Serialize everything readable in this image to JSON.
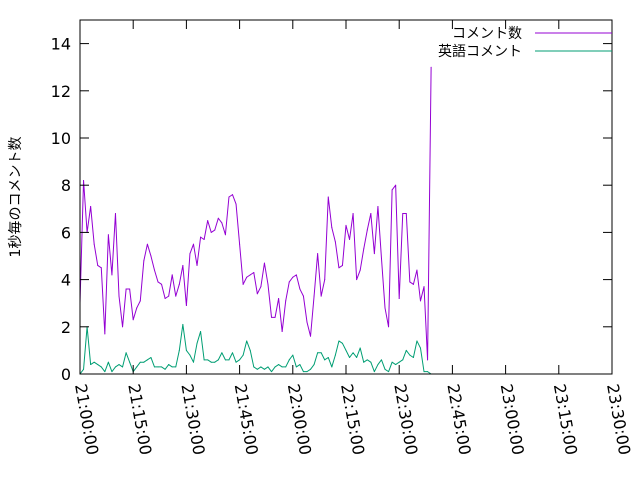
{
  "chart_data": {
    "type": "line",
    "title": "",
    "xlabel": "",
    "ylabel": "1秒毎のコメント数",
    "ylim": [
      0,
      15
    ],
    "yticks": [
      0,
      2,
      4,
      6,
      8,
      10,
      12,
      14
    ],
    "ytick_labels": [
      "0",
      "2",
      "4",
      "6",
      "8",
      "10",
      "12",
      "14"
    ],
    "xlim": [
      "21:00:00",
      "23:30:00"
    ],
    "xtick_labels": [
      "21:00:00",
      "21:15:00",
      "21:30:00",
      "21:45:00",
      "22:00:00",
      "22:15:00",
      "22:30:00",
      "22:45:00",
      "23:00:00",
      "23:15:00",
      "23:30:00"
    ],
    "grid": false,
    "legend_position": "top-right",
    "series": [
      {
        "name": "コメント数",
        "color": "#9400d3",
        "points": [
          [
            "21:00:00",
            3.0
          ],
          [
            "21:01:00",
            8.2
          ],
          [
            "21:02:00",
            6.0
          ],
          [
            "21:03:00",
            7.1
          ],
          [
            "21:04:00",
            5.5
          ],
          [
            "21:05:00",
            4.6
          ],
          [
            "21:06:00",
            4.5
          ],
          [
            "21:07:00",
            1.7
          ],
          [
            "21:08:00",
            5.9
          ],
          [
            "21:09:00",
            4.2
          ],
          [
            "21:10:00",
            6.8
          ],
          [
            "21:11:00",
            3.3
          ],
          [
            "21:12:00",
            2.0
          ],
          [
            "21:13:00",
            3.6
          ],
          [
            "21:14:00",
            3.6
          ],
          [
            "21:15:00",
            2.3
          ],
          [
            "21:16:00",
            2.8
          ],
          [
            "21:17:00",
            3.1
          ],
          [
            "21:18:00",
            4.8
          ],
          [
            "21:19:00",
            5.5
          ],
          [
            "21:20:00",
            5.0
          ],
          [
            "21:21:00",
            4.4
          ],
          [
            "21:22:00",
            3.9
          ],
          [
            "21:23:00",
            3.8
          ],
          [
            "21:24:00",
            3.2
          ],
          [
            "21:25:00",
            3.3
          ],
          [
            "21:26:00",
            4.2
          ],
          [
            "21:27:00",
            3.3
          ],
          [
            "21:28:00",
            3.8
          ],
          [
            "21:29:00",
            4.6
          ],
          [
            "21:30:00",
            2.9
          ],
          [
            "21:31:00",
            5.1
          ],
          [
            "21:32:00",
            5.5
          ],
          [
            "21:33:00",
            4.6
          ],
          [
            "21:34:00",
            5.8
          ],
          [
            "21:35:00",
            5.7
          ],
          [
            "21:36:00",
            6.5
          ],
          [
            "21:37:00",
            6.0
          ],
          [
            "21:38:00",
            6.1
          ],
          [
            "21:39:00",
            6.6
          ],
          [
            "21:40:00",
            6.4
          ],
          [
            "21:41:00",
            5.9
          ],
          [
            "21:42:00",
            7.5
          ],
          [
            "21:43:00",
            7.6
          ],
          [
            "21:44:00",
            7.2
          ],
          [
            "21:45:00",
            5.5
          ],
          [
            "21:46:00",
            3.8
          ],
          [
            "21:47:00",
            4.1
          ],
          [
            "21:48:00",
            4.2
          ],
          [
            "21:49:00",
            4.3
          ],
          [
            "21:50:00",
            3.4
          ],
          [
            "21:51:00",
            3.7
          ],
          [
            "21:52:00",
            4.7
          ],
          [
            "21:53:00",
            3.8
          ],
          [
            "21:54:00",
            2.4
          ],
          [
            "21:55:00",
            2.4
          ],
          [
            "21:56:00",
            3.2
          ],
          [
            "21:57:00",
            1.8
          ],
          [
            "21:58:00",
            3.1
          ],
          [
            "21:59:00",
            3.9
          ],
          [
            "22:00:00",
            4.1
          ],
          [
            "22:01:00",
            4.2
          ],
          [
            "22:02:00",
            3.6
          ],
          [
            "22:03:00",
            3.3
          ],
          [
            "22:04:00",
            2.2
          ],
          [
            "22:05:00",
            1.6
          ],
          [
            "22:06:00",
            3.3
          ],
          [
            "22:07:00",
            5.1
          ],
          [
            "22:08:00",
            3.3
          ],
          [
            "22:09:00",
            4.0
          ],
          [
            "22:10:00",
            7.5
          ],
          [
            "22:11:00",
            6.2
          ],
          [
            "22:12:00",
            5.6
          ],
          [
            "22:13:00",
            4.5
          ],
          [
            "22:14:00",
            4.6
          ],
          [
            "22:15:00",
            6.3
          ],
          [
            "22:16:00",
            5.7
          ],
          [
            "22:17:00",
            6.8
          ],
          [
            "22:18:00",
            4.0
          ],
          [
            "22:19:00",
            4.4
          ],
          [
            "22:20:00",
            5.3
          ],
          [
            "22:21:00",
            6.1
          ],
          [
            "22:22:00",
            6.8
          ],
          [
            "22:23:00",
            5.1
          ],
          [
            "22:24:00",
            7.1
          ],
          [
            "22:25:00",
            4.9
          ],
          [
            "22:26:00",
            2.8
          ],
          [
            "22:27:00",
            2.0
          ],
          [
            "22:28:00",
            7.8
          ],
          [
            "22:29:00",
            8.0
          ],
          [
            "22:30:00",
            3.2
          ],
          [
            "22:31:00",
            6.8
          ],
          [
            "22:32:00",
            6.8
          ],
          [
            "22:33:00",
            3.9
          ],
          [
            "22:34:00",
            3.8
          ],
          [
            "22:35:00",
            4.4
          ],
          [
            "22:36:00",
            3.1
          ],
          [
            "22:37:00",
            3.7
          ],
          [
            "22:38:00",
            0.6
          ],
          [
            "22:39:00",
            13.0
          ]
        ]
      },
      {
        "name": "英語コメント",
        "color": "#009e73",
        "points": [
          [
            "21:00:00",
            0.0
          ],
          [
            "21:01:00",
            0.2
          ],
          [
            "21:02:00",
            2.0
          ],
          [
            "21:03:00",
            0.4
          ],
          [
            "21:04:00",
            0.5
          ],
          [
            "21:05:00",
            0.4
          ],
          [
            "21:06:00",
            0.3
          ],
          [
            "21:07:00",
            0.1
          ],
          [
            "21:08:00",
            0.5
          ],
          [
            "21:09:00",
            0.1
          ],
          [
            "21:10:00",
            0.3
          ],
          [
            "21:11:00",
            0.4
          ],
          [
            "21:12:00",
            0.3
          ],
          [
            "21:13:00",
            0.9
          ],
          [
            "21:14:00",
            0.5
          ],
          [
            "21:15:00",
            0.1
          ],
          [
            "21:16:00",
            0.3
          ],
          [
            "21:17:00",
            0.5
          ],
          [
            "21:18:00",
            0.5
          ],
          [
            "21:19:00",
            0.6
          ],
          [
            "21:20:00",
            0.7
          ],
          [
            "21:21:00",
            0.3
          ],
          [
            "21:22:00",
            0.3
          ],
          [
            "21:23:00",
            0.3
          ],
          [
            "21:24:00",
            0.2
          ],
          [
            "21:25:00",
            0.4
          ],
          [
            "21:26:00",
            0.3
          ],
          [
            "21:27:00",
            0.3
          ],
          [
            "21:28:00",
            1.0
          ],
          [
            "21:29:00",
            2.1
          ],
          [
            "21:30:00",
            1.0
          ],
          [
            "21:31:00",
            0.8
          ],
          [
            "21:32:00",
            0.5
          ],
          [
            "21:33:00",
            1.3
          ],
          [
            "21:34:00",
            1.8
          ],
          [
            "21:35:00",
            0.6
          ],
          [
            "21:36:00",
            0.6
          ],
          [
            "21:37:00",
            0.5
          ],
          [
            "21:38:00",
            0.5
          ],
          [
            "21:39:00",
            0.6
          ],
          [
            "21:40:00",
            0.9
          ],
          [
            "21:41:00",
            0.6
          ],
          [
            "21:42:00",
            0.6
          ],
          [
            "21:43:00",
            0.9
          ],
          [
            "21:44:00",
            0.5
          ],
          [
            "21:45:00",
            0.6
          ],
          [
            "21:46:00",
            0.8
          ],
          [
            "21:47:00",
            1.4
          ],
          [
            "21:48:00",
            1.0
          ],
          [
            "21:49:00",
            0.3
          ],
          [
            "21:50:00",
            0.2
          ],
          [
            "21:51:00",
            0.3
          ],
          [
            "21:52:00",
            0.2
          ],
          [
            "21:53:00",
            0.3
          ],
          [
            "21:54:00",
            0.1
          ],
          [
            "21:55:00",
            0.3
          ],
          [
            "21:56:00",
            0.4
          ],
          [
            "21:57:00",
            0.3
          ],
          [
            "21:58:00",
            0.3
          ],
          [
            "21:59:00",
            0.6
          ],
          [
            "22:00:00",
            0.8
          ],
          [
            "22:01:00",
            0.3
          ],
          [
            "22:02:00",
            0.4
          ],
          [
            "22:03:00",
            0.1
          ],
          [
            "22:04:00",
            0.1
          ],
          [
            "22:05:00",
            0.2
          ],
          [
            "22:06:00",
            0.4
          ],
          [
            "22:07:00",
            0.9
          ],
          [
            "22:08:00",
            0.9
          ],
          [
            "22:09:00",
            0.6
          ],
          [
            "22:10:00",
            0.7
          ],
          [
            "22:11:00",
            0.3
          ],
          [
            "22:12:00",
            0.8
          ],
          [
            "22:13:00",
            1.4
          ],
          [
            "22:14:00",
            1.3
          ],
          [
            "22:15:00",
            1.0
          ],
          [
            "22:16:00",
            0.7
          ],
          [
            "22:17:00",
            0.9
          ],
          [
            "22:18:00",
            0.7
          ],
          [
            "22:19:00",
            1.1
          ],
          [
            "22:20:00",
            0.5
          ],
          [
            "22:21:00",
            0.6
          ],
          [
            "22:22:00",
            0.5
          ],
          [
            "22:23:00",
            0.1
          ],
          [
            "22:24:00",
            0.4
          ],
          [
            "22:25:00",
            0.6
          ],
          [
            "22:26:00",
            0.2
          ],
          [
            "22:27:00",
            0.1
          ],
          [
            "22:28:00",
            0.5
          ],
          [
            "22:29:00",
            0.4
          ],
          [
            "22:30:00",
            0.5
          ],
          [
            "22:31:00",
            0.6
          ],
          [
            "22:32:00",
            1.0
          ],
          [
            "22:33:00",
            0.8
          ],
          [
            "22:34:00",
            0.7
          ],
          [
            "22:35:00",
            1.4
          ],
          [
            "22:36:00",
            1.1
          ],
          [
            "22:37:00",
            0.1
          ],
          [
            "22:38:00",
            0.1
          ],
          [
            "22:39:00",
            0.0
          ]
        ]
      }
    ]
  }
}
